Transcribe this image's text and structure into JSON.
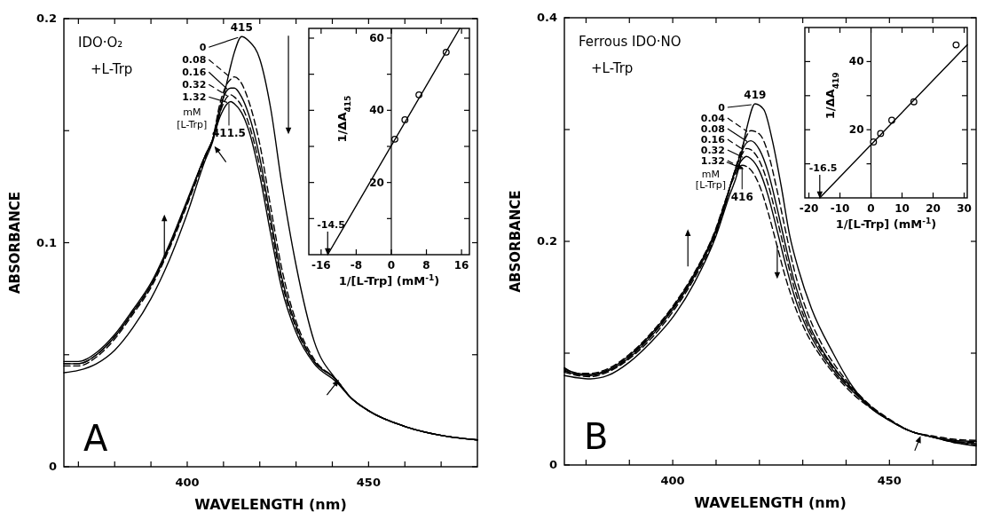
{
  "chart_data": [
    {
      "type": "line",
      "title": "IDO·O₂",
      "subtitle": "+L-Trp",
      "xlabel": "WAVELENGTH (nm)",
      "ylabel": "ABSORBANCE",
      "xlim": [
        366,
        480
      ],
      "ylim": [
        0,
        0.2
      ],
      "xticks": [
        {
          "value": 370,
          "label": null
        },
        {
          "value": 380,
          "label": null
        },
        {
          "value": 390,
          "label": null
        },
        400,
        {
          "value": 410,
          "label": null
        },
        {
          "value": 420,
          "label": null
        },
        {
          "value": 430,
          "label": null
        },
        {
          "value": 440,
          "label": null
        },
        450,
        {
          "value": 460,
          "label": null
        },
        {
          "value": 470,
          "label": null
        }
      ],
      "yticks": [
        0,
        {
          "value": 0.05,
          "label": null
        },
        0.1,
        {
          "value": 0.15,
          "label": null
        },
        0.2
      ],
      "legend": "top",
      "x": [
        366,
        370,
        375,
        380,
        385,
        390,
        395,
        400,
        405,
        407,
        409,
        411,
        412,
        413,
        415,
        417,
        420,
        423,
        426,
        430,
        435,
        441,
        445,
        450,
        460,
        470,
        480
      ],
      "series": [
        {
          "name": "0",
          "color": "#000000",
          "line_style": "solid",
          "values": [
            0.042,
            0.043,
            0.046,
            0.052,
            0.062,
            0.075,
            0.092,
            0.113,
            0.137,
            0.145,
            0.158,
            0.172,
            0.179,
            0.185,
            0.192,
            0.19,
            0.182,
            0.16,
            0.127,
            0.09,
            0.056,
            0.039,
            0.031,
            0.025,
            0.018,
            0.014,
            0.012
          ]
        },
        {
          "name": "0.08",
          "color": "#000000",
          "line_style": "dashed",
          "values": [
            0.045,
            0.045,
            0.049,
            0.057,
            0.068,
            0.08,
            0.097,
            0.117,
            0.138,
            0.146,
            0.162,
            0.171,
            0.173,
            0.174,
            0.171,
            0.163,
            0.144,
            0.116,
            0.089,
            0.065,
            0.048,
            0.039,
            0.031,
            0.025,
            0.018,
            0.014,
            0.012
          ]
        },
        {
          "name": "0.16",
          "color": "#000000",
          "line_style": "solid",
          "values": [
            0.046,
            0.046,
            0.05,
            0.058,
            0.069,
            0.081,
            0.098,
            0.118,
            0.139,
            0.146,
            0.16,
            0.168,
            0.169,
            0.169,
            0.165,
            0.157,
            0.138,
            0.111,
            0.085,
            0.063,
            0.047,
            0.039,
            0.031,
            0.025,
            0.018,
            0.014,
            0.012
          ]
        },
        {
          "name": "0.32",
          "color": "#000000",
          "line_style": "dashed",
          "values": [
            0.046,
            0.046,
            0.05,
            0.058,
            0.069,
            0.081,
            0.098,
            0.118,
            0.139,
            0.146,
            0.158,
            0.165,
            0.166,
            0.165,
            0.161,
            0.153,
            0.134,
            0.108,
            0.083,
            0.062,
            0.047,
            0.039,
            0.031,
            0.025,
            0.018,
            0.014,
            0.012
          ]
        },
        {
          "name": "1.32",
          "color": "#000000",
          "line_style": "solid",
          "values": [
            0.047,
            0.047,
            0.051,
            0.059,
            0.07,
            0.082,
            0.099,
            0.119,
            0.139,
            0.146,
            0.156,
            0.162,
            0.163,
            0.162,
            0.158,
            0.15,
            0.13,
            0.104,
            0.08,
            0.06,
            0.046,
            0.038,
            0.031,
            0.025,
            0.018,
            0.014,
            0.012
          ]
        }
      ],
      "annotations": [
        "mM",
        "[L-Trp]",
        {
          "text": "415",
          "x": 415,
          "y": 0.192
        },
        {
          "text": "411.5",
          "x": 411.5,
          "y": 0.163
        },
        "A"
      ]
    },
    {
      "type": "scatter",
      "xlabel": "1/[L-Trp]  (mM$^{-1}$)",
      "ylabel": "1/ΔA$_{415}$",
      "xlim": [
        -18.8,
        17.8
      ],
      "ylim": [
        0,
        62.7
      ],
      "xticks": [
        -16,
        -8,
        0,
        8,
        16
      ],
      "yticks": [
        {
          "value": 10,
          "label": null
        },
        20,
        {
          "value": 30,
          "label": null
        },
        40,
        {
          "value": 50,
          "label": null
        },
        60
      ],
      "series": [
        {
          "type": "scatter",
          "marker": "circle",
          "color": "#000000",
          "x": [
            0.8,
            3.1,
            6.3,
            12.5
          ],
          "values": [
            32,
            37.4,
            44.3,
            56.1
          ]
        },
        {
          "type": "line",
          "color": "#000000",
          "x": [
            -14.5,
            15.6
          ],
          "values": [
            0,
            62.7
          ]
        }
      ],
      "annotations": [
        {
          "text": "-14.5",
          "x": -14.5,
          "y": 0
        }
      ]
    },
    {
      "type": "line",
      "title": "Ferrous IDO·NO",
      "subtitle": "+L-Trp",
      "xlabel": "WAVELENGTH (nm)",
      "ylabel": "ABSORBANCE",
      "xlim": [
        375,
        470
      ],
      "ylim": [
        0,
        0.4
      ],
      "xticks": [
        {
          "value": 380,
          "label": null
        },
        {
          "value": 390,
          "label": null
        },
        400,
        {
          "value": 410,
          "label": null
        },
        {
          "value": 420,
          "label": null
        },
        {
          "value": 430,
          "label": null
        },
        {
          "value": 440,
          "label": null
        },
        450,
        {
          "value": 460,
          "label": null
        }
      ],
      "yticks": [
        0,
        {
          "value": 0.1,
          "label": null
        },
        0.2,
        {
          "value": 0.3,
          "label": null
        },
        0.4
      ],
      "legend": "top",
      "x": [
        375,
        378,
        381,
        385,
        390,
        395,
        400,
        405,
        410,
        412,
        414,
        416,
        417,
        418,
        420,
        422,
        424,
        426,
        428,
        431,
        434,
        438,
        442,
        446,
        450,
        455,
        460,
        465,
        470
      ],
      "series": [
        {
          "name": "0",
          "color": "#000000",
          "line_style": "solid",
          "x": [
            375,
            378,
            381,
            385,
            390,
            395,
            400,
            405,
            410,
            413,
            415,
            417,
            419,
            421,
            423,
            425,
            427,
            429,
            432,
            437,
            441,
            446,
            450,
            455,
            460,
            465,
            470
          ],
          "values": [
            0.08,
            0.078,
            0.077,
            0.08,
            0.092,
            0.11,
            0.132,
            0.163,
            0.205,
            0.24,
            0.262,
            0.3,
            0.323,
            0.318,
            0.29,
            0.25,
            0.205,
            0.175,
            0.14,
            0.1,
            0.073,
            0.05,
            0.04,
            0.03,
            0.025,
            0.02,
            0.017
          ]
        },
        {
          "name": "0.04",
          "color": "#000000",
          "line_style": "dashed",
          "values": [
            0.083,
            0.08,
            0.079,
            0.083,
            0.095,
            0.113,
            0.137,
            0.167,
            0.207,
            0.231,
            0.259,
            0.284,
            0.294,
            0.299,
            0.296,
            0.279,
            0.247,
            0.21,
            0.175,
            0.137,
            0.111,
            0.086,
            0.067,
            0.052,
            0.041,
            0.03,
            0.025,
            0.02,
            0.018
          ]
        },
        {
          "name": "0.08",
          "color": "#000000",
          "line_style": "solid",
          "values": [
            0.084,
            0.081,
            0.08,
            0.084,
            0.096,
            0.115,
            0.139,
            0.169,
            0.209,
            0.232,
            0.259,
            0.281,
            0.288,
            0.29,
            0.282,
            0.262,
            0.231,
            0.197,
            0.165,
            0.13,
            0.106,
            0.083,
            0.066,
            0.051,
            0.04,
            0.03,
            0.025,
            0.021,
            0.019
          ]
        },
        {
          "name": "0.16",
          "color": "#000000",
          "line_style": "dashed",
          "values": [
            0.085,
            0.081,
            0.081,
            0.084,
            0.097,
            0.116,
            0.14,
            0.17,
            0.21,
            0.233,
            0.259,
            0.278,
            0.283,
            0.282,
            0.272,
            0.251,
            0.221,
            0.189,
            0.159,
            0.126,
            0.104,
            0.082,
            0.065,
            0.051,
            0.04,
            0.03,
            0.025,
            0.021,
            0.02
          ]
        },
        {
          "name": "0.32",
          "color": "#000000",
          "line_style": "solid",
          "values": [
            0.086,
            0.082,
            0.081,
            0.085,
            0.098,
            0.117,
            0.141,
            0.171,
            0.211,
            0.234,
            0.258,
            0.273,
            0.276,
            0.274,
            0.263,
            0.241,
            0.211,
            0.18,
            0.152,
            0.122,
            0.101,
            0.08,
            0.064,
            0.05,
            0.04,
            0.03,
            0.025,
            0.022,
            0.021
          ]
        },
        {
          "name": "1.32",
          "color": "#000000",
          "line_style": "dashed",
          "values": [
            0.087,
            0.082,
            0.082,
            0.086,
            0.099,
            0.118,
            0.142,
            0.172,
            0.212,
            0.235,
            0.256,
            0.268,
            0.267,
            0.264,
            0.25,
            0.226,
            0.197,
            0.168,
            0.144,
            0.117,
            0.098,
            0.078,
            0.062,
            0.05,
            0.04,
            0.03,
            0.026,
            0.023,
            0.022
          ]
        }
      ],
      "annotations": [
        "mM",
        "[L-Trp]",
        {
          "text": "419",
          "x": 419,
          "y": 0.323
        },
        {
          "text": "416",
          "x": 416,
          "y": 0.268
        },
        "B"
      ]
    },
    {
      "type": "scatter",
      "xlabel": "1/[L-Trp]  (mM$^{-1}$)",
      "ylabel": "1/ΔA$_{419}$",
      "xlim": [
        -21.3,
        31
      ],
      "ylim": [
        0,
        50
      ],
      "xticks": [
        -20,
        -10,
        0,
        10,
        20,
        30
      ],
      "yticks": [
        {
          "value": 10,
          "label": null
        },
        20,
        {
          "value": 30,
          "label": null
        },
        40
      ],
      "series": [
        {
          "type": "scatter",
          "marker": "circle",
          "color": "#000000",
          "x": [
            0.8,
            3.1,
            6.7,
            13.8,
            27.4
          ],
          "values": [
            16.4,
            18.9,
            22.8,
            28.2,
            44.9
          ]
        },
        {
          "type": "line",
          "color": "#000000",
          "x": [
            -16.5,
            31
          ],
          "values": [
            0,
            44.9
          ]
        }
      ],
      "annotations": [
        {
          "text": "-16.5",
          "x": -16.5,
          "y": 0
        }
      ]
    }
  ]
}
